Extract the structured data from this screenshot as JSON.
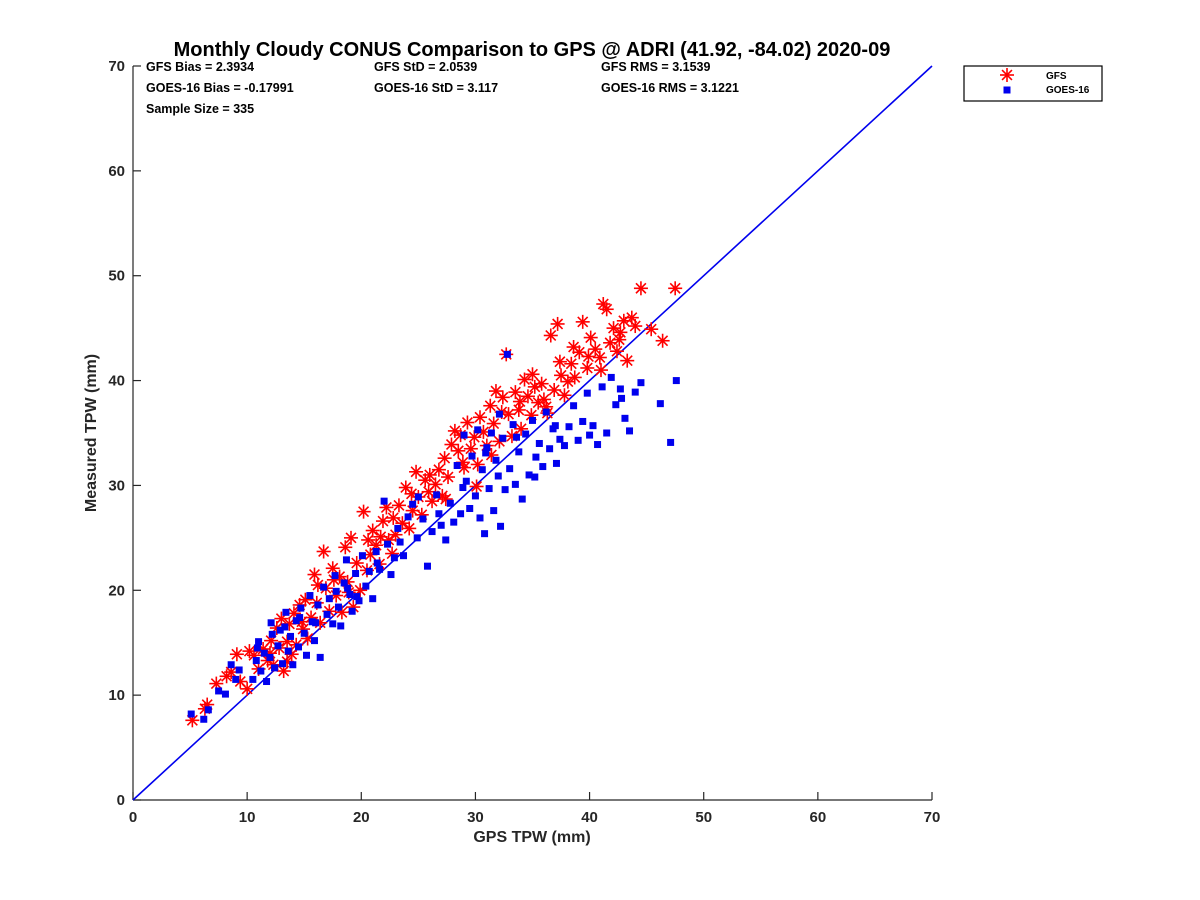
{
  "chart_data": {
    "type": "scatter",
    "title": "Monthly Cloudy CONUS Comparison to GPS @ ADRI (41.92, -84.02) 2020-09",
    "xlabel": "GPS TPW (mm)",
    "ylabel": "Measured TPW (mm)",
    "xlim": [
      0,
      70
    ],
    "ylim": [
      0,
      70
    ],
    "xticks": [
      0,
      10,
      20,
      30,
      40,
      50,
      60,
      70
    ],
    "yticks": [
      0,
      10,
      20,
      30,
      40,
      50,
      60,
      70
    ],
    "grid": false,
    "legend_position": "outside top-right",
    "reference_line": {
      "x": [
        0,
        70
      ],
      "y": [
        0,
        70
      ],
      "color": "#0000ee"
    },
    "stats": {
      "gfs_bias": "GFS Bias = 2.3934",
      "gfs_std": "GFS StD = 2.0539",
      "gfs_rms": "GFS RMS = 3.1539",
      "goes_bias": "GOES-16 Bias = -0.17991",
      "goes_std": "GOES-16 StD = 3.117",
      "goes_rms": "GOES-16 RMS = 3.1221",
      "sample_size": "Sample Size = 335"
    },
    "series": [
      {
        "name": "GFS",
        "marker": "asterisk",
        "color": "#ff0000",
        "points": [
          [
            5.2,
            7.6
          ],
          [
            6.3,
            8.7
          ],
          [
            6.5,
            9.1
          ],
          [
            7.3,
            11.1
          ],
          [
            8.2,
            11.8
          ],
          [
            8.6,
            12.2
          ],
          [
            9.1,
            13.9
          ],
          [
            9.4,
            11.3
          ],
          [
            10.0,
            10.6
          ],
          [
            10.6,
            13.8
          ],
          [
            11.0,
            12.5
          ],
          [
            11.4,
            14.4
          ],
          [
            11.8,
            13.3
          ],
          [
            12.1,
            15.2
          ],
          [
            12.3,
            12.9
          ],
          [
            12.6,
            16.4
          ],
          [
            12.8,
            14.5
          ],
          [
            13.0,
            17.3
          ],
          [
            13.2,
            12.3
          ],
          [
            13.5,
            15.1
          ],
          [
            13.7,
            16.8
          ],
          [
            13.9,
            13.9
          ],
          [
            14.1,
            17.8
          ],
          [
            14.3,
            14.8
          ],
          [
            14.6,
            18.6
          ],
          [
            14.9,
            16.3
          ],
          [
            15.1,
            19.1
          ],
          [
            15.3,
            15.4
          ],
          [
            15.6,
            17.4
          ],
          [
            15.9,
            21.5
          ],
          [
            16.1,
            18.8
          ],
          [
            16.4,
            16.9
          ],
          [
            16.7,
            23.7
          ],
          [
            16.9,
            20.2
          ],
          [
            17.2,
            18.0
          ],
          [
            17.5,
            22.1
          ],
          [
            17.8,
            19.5
          ],
          [
            18.1,
            21.3
          ],
          [
            18.3,
            17.9
          ],
          [
            18.6,
            24.1
          ],
          [
            18.8,
            20.8
          ],
          [
            19.1,
            25.0
          ],
          [
            19.3,
            18.4
          ],
          [
            19.6,
            22.6
          ],
          [
            19.9,
            20.0
          ],
          [
            20.2,
            27.5
          ],
          [
            20.5,
            21.9
          ],
          [
            20.8,
            23.4
          ],
          [
            21.0,
            25.7
          ],
          [
            21.3,
            24.3
          ],
          [
            21.6,
            22.5
          ],
          [
            21.9,
            26.6
          ],
          [
            22.2,
            27.9
          ],
          [
            22.4,
            24.8
          ],
          [
            22.7,
            23.5
          ],
          [
            23.0,
            25.3
          ],
          [
            23.3,
            28.1
          ],
          [
            23.6,
            26.4
          ],
          [
            23.9,
            29.8
          ],
          [
            24.2,
            25.9
          ],
          [
            24.5,
            27.6
          ],
          [
            24.8,
            31.3
          ],
          [
            25.0,
            28.9
          ],
          [
            25.3,
            27.2
          ],
          [
            25.6,
            30.5
          ],
          [
            25.9,
            29.4
          ],
          [
            26.2,
            28.5
          ],
          [
            26.5,
            30.1
          ],
          [
            26.8,
            31.5
          ],
          [
            27.1,
            29.0
          ],
          [
            27.3,
            32.6
          ],
          [
            27.6,
            30.8
          ],
          [
            27.9,
            33.9
          ],
          [
            28.2,
            35.2
          ],
          [
            28.5,
            33.3
          ],
          [
            28.7,
            34.8
          ],
          [
            29.0,
            31.7
          ],
          [
            29.3,
            36.0
          ],
          [
            29.6,
            33.5
          ],
          [
            29.9,
            34.6
          ],
          [
            30.2,
            32.0
          ],
          [
            30.4,
            36.5
          ],
          [
            30.7,
            35.1
          ],
          [
            31.0,
            33.8
          ],
          [
            31.3,
            37.6
          ],
          [
            31.6,
            35.9
          ],
          [
            31.8,
            39.0
          ],
          [
            32.1,
            34.2
          ],
          [
            32.4,
            38.4
          ],
          [
            32.7,
            42.5
          ],
          [
            32.9,
            36.8
          ],
          [
            33.2,
            34.7
          ],
          [
            33.5,
            38.9
          ],
          [
            33.8,
            37.2
          ],
          [
            34.0,
            35.4
          ],
          [
            34.3,
            40.1
          ],
          [
            34.6,
            38.5
          ],
          [
            34.9,
            36.7
          ],
          [
            35.2,
            39.4
          ],
          [
            35.5,
            37.9
          ],
          [
            35.8,
            39.7
          ],
          [
            36.0,
            38.2
          ],
          [
            36.3,
            36.9
          ],
          [
            36.6,
            44.3
          ],
          [
            36.9,
            39.1
          ],
          [
            37.2,
            45.4
          ],
          [
            37.5,
            40.5
          ],
          [
            37.8,
            38.6
          ],
          [
            38.1,
            39.9
          ],
          [
            38.4,
            41.6
          ],
          [
            38.7,
            40.3
          ],
          [
            39.1,
            42.7
          ],
          [
            39.4,
            45.6
          ],
          [
            39.8,
            41.2
          ],
          [
            40.1,
            44.1
          ],
          [
            40.5,
            43.0
          ],
          [
            40.9,
            42.2
          ],
          [
            41.2,
            47.3
          ],
          [
            41.5,
            46.8
          ],
          [
            41.8,
            43.6
          ],
          [
            42.1,
            45.0
          ],
          [
            42.4,
            42.8
          ],
          [
            42.7,
            44.6
          ],
          [
            43.0,
            45.7
          ],
          [
            43.3,
            41.9
          ],
          [
            43.7,
            46.0
          ],
          [
            44.0,
            45.2
          ],
          [
            44.5,
            48.8
          ],
          [
            45.4,
            44.9
          ],
          [
            46.4,
            43.8
          ],
          [
            47.5,
            48.8
          ],
          [
            10.2,
            14.2
          ],
          [
            12.0,
            14.0
          ],
          [
            13.5,
            13.2
          ],
          [
            14.8,
            17.0
          ],
          [
            16.2,
            20.5
          ],
          [
            17.6,
            21.0
          ],
          [
            18.9,
            19.8
          ],
          [
            20.6,
            24.8
          ],
          [
            21.7,
            25.1
          ],
          [
            22.8,
            26.9
          ],
          [
            24.4,
            29.2
          ],
          [
            26.0,
            31.0
          ],
          [
            27.4,
            28.7
          ],
          [
            28.9,
            32.2
          ],
          [
            30.1,
            29.9
          ],
          [
            31.4,
            32.9
          ],
          [
            32.3,
            37.0
          ],
          [
            33.9,
            38.0
          ],
          [
            35.0,
            40.6
          ],
          [
            36.2,
            37.5
          ],
          [
            37.4,
            41.8
          ],
          [
            38.6,
            43.2
          ],
          [
            39.9,
            42.3
          ],
          [
            41.0,
            41.0
          ],
          [
            42.6,
            43.9
          ]
        ]
      },
      {
        "name": "GOES-16",
        "marker": "square",
        "color": "#0000ee",
        "points": [
          [
            5.1,
            8.2
          ],
          [
            6.2,
            7.7
          ],
          [
            6.6,
            8.6
          ],
          [
            7.5,
            10.4
          ],
          [
            8.1,
            10.1
          ],
          [
            8.6,
            12.9
          ],
          [
            9.0,
            11.5
          ],
          [
            9.3,
            12.4
          ],
          [
            10.5,
            11.5
          ],
          [
            10.8,
            13.3
          ],
          [
            11.0,
            15.1
          ],
          [
            11.2,
            12.3
          ],
          [
            11.5,
            14.0
          ],
          [
            11.7,
            11.3
          ],
          [
            12.0,
            13.6
          ],
          [
            12.2,
            15.8
          ],
          [
            12.4,
            12.6
          ],
          [
            12.7,
            14.7
          ],
          [
            12.9,
            16.2
          ],
          [
            13.1,
            13.0
          ],
          [
            13.4,
            17.9
          ],
          [
            13.6,
            14.2
          ],
          [
            13.8,
            15.6
          ],
          [
            14.0,
            12.9
          ],
          [
            14.3,
            17.1
          ],
          [
            14.5,
            14.6
          ],
          [
            14.7,
            18.3
          ],
          [
            15.0,
            15.9
          ],
          [
            15.2,
            13.8
          ],
          [
            15.5,
            19.5
          ],
          [
            15.7,
            17.0
          ],
          [
            15.9,
            15.2
          ],
          [
            16.2,
            18.6
          ],
          [
            16.4,
            13.6
          ],
          [
            16.7,
            20.3
          ],
          [
            17.0,
            17.7
          ],
          [
            17.2,
            19.2
          ],
          [
            17.5,
            16.8
          ],
          [
            17.7,
            21.4
          ],
          [
            18.0,
            18.4
          ],
          [
            18.2,
            16.6
          ],
          [
            18.5,
            20.7
          ],
          [
            18.7,
            22.9
          ],
          [
            19.0,
            19.6
          ],
          [
            19.2,
            18.0
          ],
          [
            19.5,
            21.6
          ],
          [
            19.8,
            19.0
          ],
          [
            20.1,
            23.3
          ],
          [
            20.4,
            20.4
          ],
          [
            20.7,
            21.8
          ],
          [
            21.0,
            19.2
          ],
          [
            21.3,
            23.7
          ],
          [
            21.6,
            22.0
          ],
          [
            22.0,
            28.5
          ],
          [
            22.3,
            24.4
          ],
          [
            22.6,
            21.5
          ],
          [
            22.9,
            23.1
          ],
          [
            23.2,
            25.9
          ],
          [
            23.7,
            23.3
          ],
          [
            24.1,
            27.0
          ],
          [
            24.5,
            28.2
          ],
          [
            24.9,
            25.0
          ],
          [
            25.4,
            26.8
          ],
          [
            25.8,
            22.3
          ],
          [
            26.2,
            25.6
          ],
          [
            26.6,
            29.1
          ],
          [
            27.0,
            26.2
          ],
          [
            27.4,
            24.8
          ],
          [
            27.8,
            28.3
          ],
          [
            28.1,
            26.5
          ],
          [
            28.4,
            31.9
          ],
          [
            28.7,
            27.3
          ],
          [
            29.0,
            34.8
          ],
          [
            29.2,
            30.4
          ],
          [
            29.5,
            27.8
          ],
          [
            29.7,
            32.8
          ],
          [
            30.0,
            29.0
          ],
          [
            30.2,
            35.3
          ],
          [
            30.4,
            26.9
          ],
          [
            30.6,
            31.5
          ],
          [
            30.8,
            25.4
          ],
          [
            31.0,
            33.6
          ],
          [
            31.2,
            29.7
          ],
          [
            31.4,
            35.0
          ],
          [
            31.6,
            27.6
          ],
          [
            31.8,
            32.4
          ],
          [
            32.0,
            30.9
          ],
          [
            32.2,
            26.1
          ],
          [
            32.4,
            34.5
          ],
          [
            32.6,
            29.6
          ],
          [
            32.8,
            42.5
          ],
          [
            33.0,
            31.6
          ],
          [
            33.3,
            35.8
          ],
          [
            33.5,
            30.1
          ],
          [
            33.8,
            33.2
          ],
          [
            34.1,
            28.7
          ],
          [
            34.4,
            34.9
          ],
          [
            34.7,
            31.0
          ],
          [
            35.0,
            36.2
          ],
          [
            35.3,
            32.7
          ],
          [
            35.6,
            34.0
          ],
          [
            35.9,
            31.8
          ],
          [
            36.2,
            37.0
          ],
          [
            36.5,
            33.5
          ],
          [
            36.8,
            35.4
          ],
          [
            37.1,
            32.1
          ],
          [
            37.4,
            34.4
          ],
          [
            37.8,
            33.8
          ],
          [
            38.2,
            35.6
          ],
          [
            38.6,
            37.6
          ],
          [
            39.0,
            34.3
          ],
          [
            39.4,
            36.1
          ],
          [
            39.8,
            38.8
          ],
          [
            40.3,
            35.7
          ],
          [
            40.7,
            33.9
          ],
          [
            41.1,
            39.4
          ],
          [
            41.5,
            35.0
          ],
          [
            41.9,
            40.3
          ],
          [
            42.3,
            37.7
          ],
          [
            42.7,
            39.2
          ],
          [
            43.1,
            36.4
          ],
          [
            43.5,
            35.2
          ],
          [
            44.0,
            38.9
          ],
          [
            44.5,
            39.8
          ],
          [
            46.2,
            37.8
          ],
          [
            47.1,
            34.1
          ],
          [
            47.6,
            40.0
          ],
          [
            10.9,
            14.5
          ],
          [
            12.1,
            16.9
          ],
          [
            13.3,
            16.5
          ],
          [
            14.6,
            17.4
          ],
          [
            16.0,
            16.9
          ],
          [
            17.8,
            19.9
          ],
          [
            18.8,
            20.2
          ],
          [
            19.6,
            19.4
          ],
          [
            21.4,
            22.6
          ],
          [
            23.4,
            24.6
          ],
          [
            25.0,
            28.9
          ],
          [
            26.8,
            27.3
          ],
          [
            28.9,
            29.8
          ],
          [
            30.9,
            33.1
          ],
          [
            32.1,
            36.8
          ],
          [
            33.6,
            34.6
          ],
          [
            35.2,
            30.8
          ],
          [
            37.0,
            35.7
          ],
          [
            40.0,
            34.8
          ],
          [
            42.8,
            38.3
          ]
        ]
      }
    ]
  }
}
